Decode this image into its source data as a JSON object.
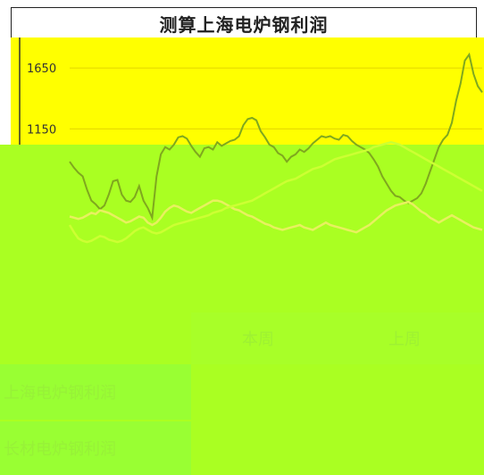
{
  "title": "测算上海电炉钢利润",
  "chart_data": {
    "type": "line",
    "title": "测算上海电炉钢利润",
    "ylabel": "",
    "xlabel": "",
    "y_ticks": [
      1650,
      1150
    ],
    "ylim": [
      -300,
      1900
    ],
    "series": [
      {
        "values": [
          880,
          830,
          790,
          760,
          650,
          560,
          530,
          490,
          520,
          610,
          720,
          730,
          610,
          560,
          550,
          590,
          680,
          560,
          500,
          420,
          760,
          940,
          1000,
          980,
          1020,
          1080,
          1090,
          1070,
          1010,
          960,
          920,
          990,
          1000,
          980,
          1040,
          1010,
          1030,
          1050,
          1060,
          1090,
          1180,
          1230,
          1240,
          1220,
          1130,
          1080,
          1020,
          1000,
          950,
          930,
          880,
          920,
          940,
          980,
          960,
          990,
          1030,
          1060,
          1090,
          1080,
          1090,
          1070,
          1060,
          1100,
          1090,
          1050,
          1020,
          1000,
          980,
          950,
          900,
          840,
          760,
          700,
          640,
          600,
          590,
          560,
          540,
          560,
          580,
          620,
          700,
          800,
          900,
          1000,
          1060,
          1100,
          1200,
          1380,
          1520,
          1710,
          1760,
          1600,
          1500,
          1450
        ]
      },
      {
        "values": [
          430,
          420,
          410,
          420,
          440,
          460,
          450,
          480,
          470,
          460,
          440,
          420,
          400,
          380,
          390,
          410,
          430,
          420,
          380,
          360,
          380,
          420,
          470,
          500,
          520,
          510,
          490,
          470,
          460,
          480,
          500,
          520,
          540,
          560,
          560,
          550,
          530,
          510,
          490,
          480,
          460,
          440,
          430,
          410,
          390,
          370,
          360,
          340,
          330,
          320,
          330,
          340,
          350,
          360,
          340,
          330,
          320,
          340,
          360,
          380,
          360,
          350,
          340,
          330,
          320,
          310,
          300,
          320,
          340,
          360,
          390,
          420,
          450,
          480,
          500,
          520,
          530,
          540,
          550,
          530,
          500,
          470,
          450,
          420,
          400,
          380,
          400,
          420,
          440,
          420,
          400,
          380,
          360,
          340,
          330,
          320
        ]
      },
      {
        "values": [
          360,
          300,
          250,
          230,
          220,
          230,
          250,
          270,
          260,
          240,
          230,
          220,
          230,
          250,
          280,
          310,
          330,
          340,
          320,
          300,
          290,
          300,
          320,
          340,
          360,
          370,
          380,
          390,
          400,
          410,
          420,
          430,
          440,
          460,
          470,
          480,
          500,
          510,
          520,
          530,
          540,
          550,
          560,
          580,
          600,
          620,
          640,
          660,
          680,
          700,
          720,
          730,
          740,
          760,
          780,
          800,
          820,
          830,
          840,
          860,
          880,
          900,
          910,
          920,
          930,
          940,
          950,
          960,
          970,
          980,
          1000,
          1010,
          1020,
          1030,
          1040,
          1030,
          1020,
          1000,
          980,
          960,
          940,
          920,
          900,
          880,
          860,
          840,
          820,
          800,
          780,
          760,
          740,
          720,
          700,
          680,
          660,
          640
        ]
      }
    ],
    "colors": [
      "#7fa81e",
      "#e8f060",
      "#ccff33"
    ]
  },
  "table": {
    "headers": [
      "本周",
      "上周"
    ],
    "rows": [
      {
        "label": "上海电炉钢利润",
        "values": [
          "",
          ""
        ]
      },
      {
        "label": "长材电炉钢利润",
        "values": [
          "",
          ""
        ]
      }
    ]
  }
}
